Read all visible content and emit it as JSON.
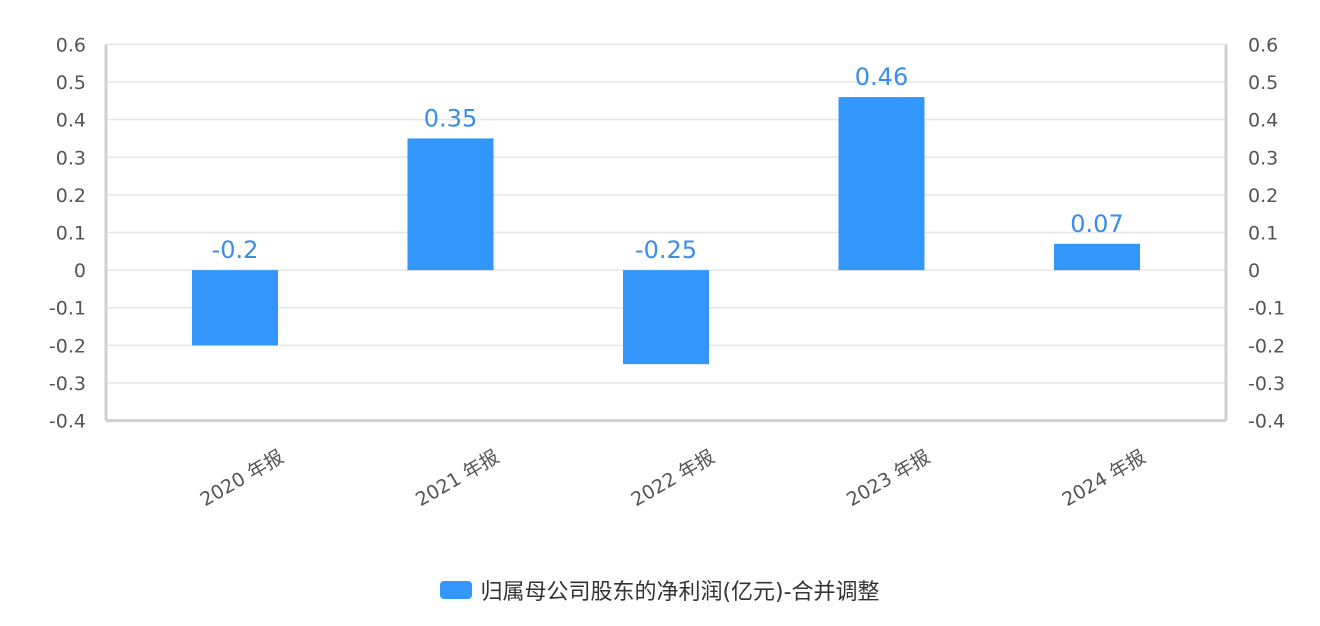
{
  "chart_data": {
    "type": "bar",
    "categories": [
      "2020 年报",
      "2021 年报",
      "2022 年报",
      "2023 年报",
      "2024 年报"
    ],
    "series": [
      {
        "name": "归属母公司股东的净利润(亿元)-合并调整",
        "values": [
          -0.2,
          0.35,
          -0.25,
          0.46,
          0.07
        ],
        "labels": [
          "-0.2",
          "0.35",
          "-0.25",
          "0.46",
          "0.07"
        ]
      }
    ],
    "ylim": [
      -0.4,
      0.6
    ],
    "yticks": [
      "0.6",
      "0.5",
      "0.4",
      "0.3",
      "0.2",
      "0.1",
      "0",
      "-0.1",
      "-0.2",
      "-0.3",
      "-0.4"
    ],
    "ytick_values": [
      0.6,
      0.5,
      0.4,
      0.3,
      0.2,
      0.1,
      0,
      -0.1,
      -0.2,
      -0.3,
      -0.4
    ],
    "dual_y_axis": true,
    "grid": true,
    "legend_position": "bottom",
    "colors": {
      "bar": "#3296fa",
      "label": "#3a8ee6",
      "grid": "#e6e6e6",
      "axis": "#d0d0d0"
    }
  }
}
